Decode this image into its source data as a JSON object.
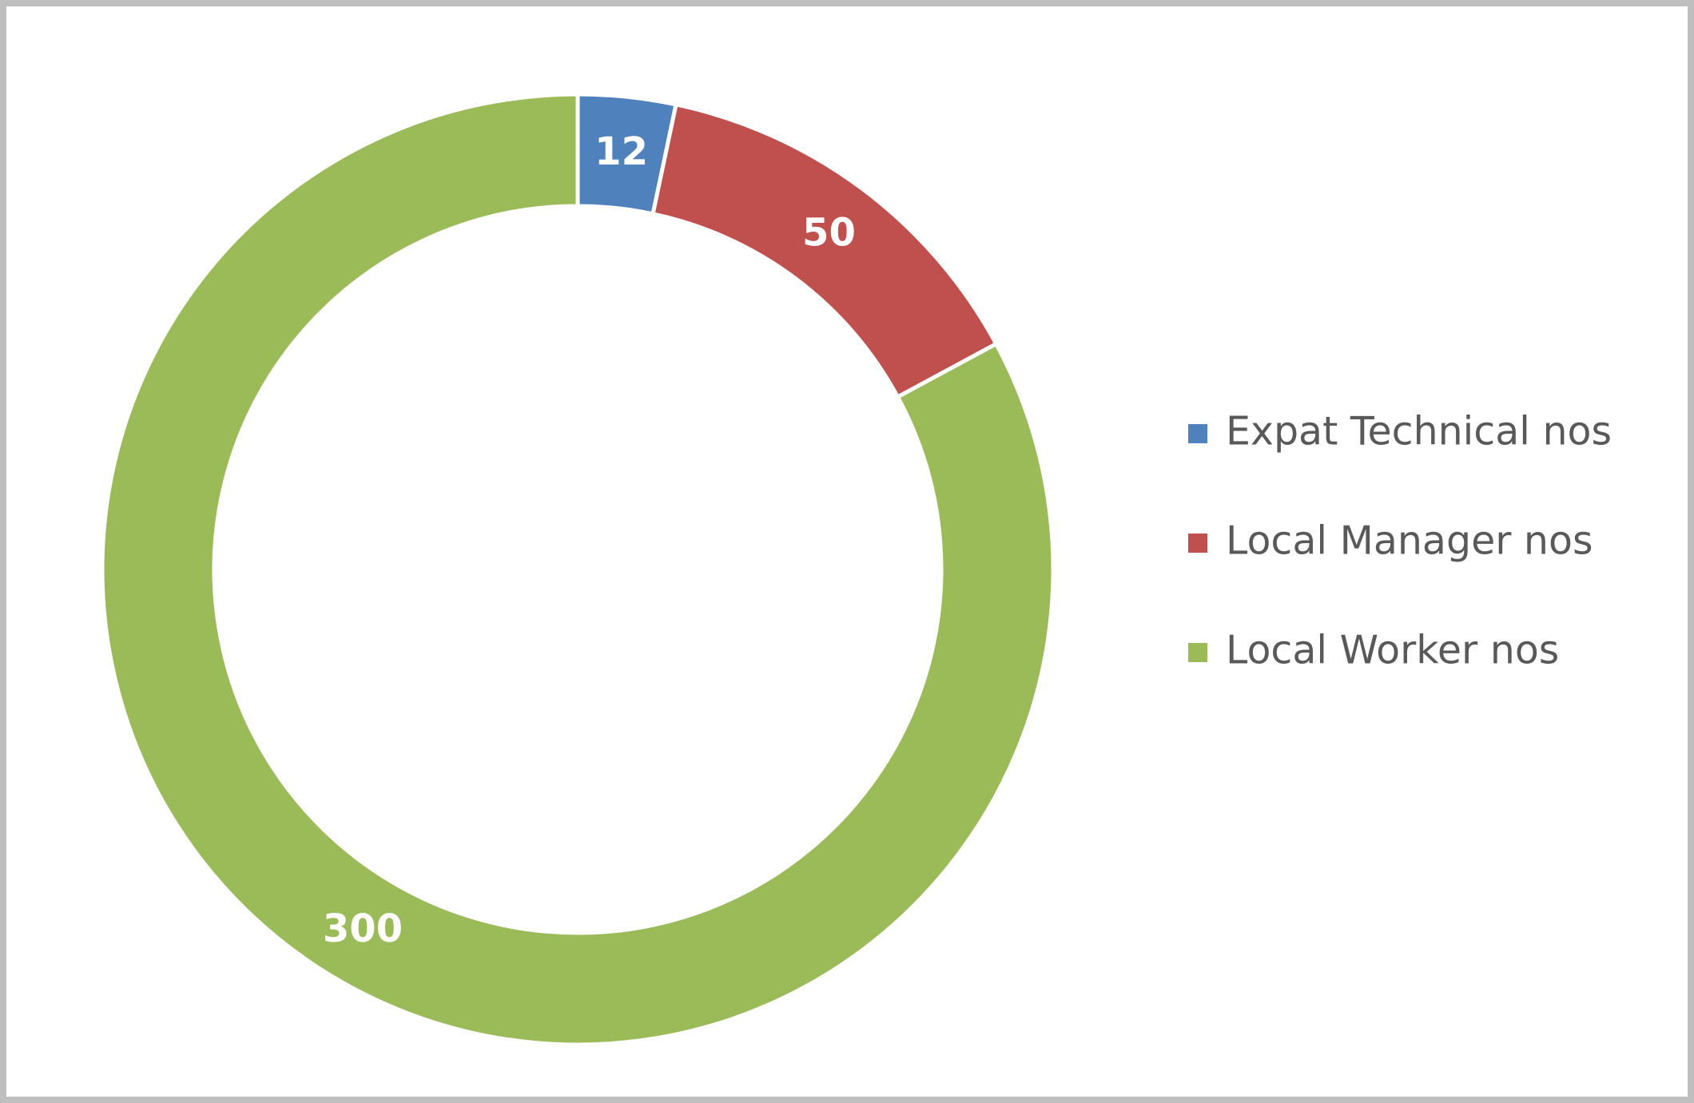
{
  "chart_data": {
    "type": "donut",
    "categories": [
      "Expat Technical nos",
      "Local Manager nos",
      "Local Worker nos"
    ],
    "values": [
      12,
      50,
      300
    ],
    "colors": [
      "#4f81bd",
      "#c0504d",
      "#9bbb59"
    ],
    "data_labels": true,
    "legend": "right"
  }
}
